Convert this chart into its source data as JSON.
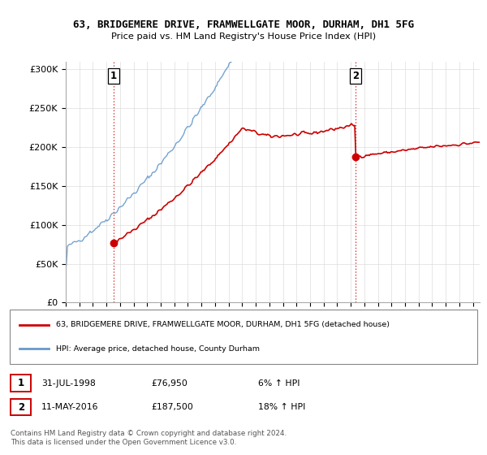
{
  "title": "63, BRIDGEMERE DRIVE, FRAMWELLGATE MOOR, DURHAM, DH1 5FG",
  "subtitle": "Price paid vs. HM Land Registry's House Price Index (HPI)",
  "background_color": "#ffffff",
  "plot_bg_color": "#ffffff",
  "grid_color": "#dddddd",
  "sale1_date": "31-JUL-1998",
  "sale1_price": 76950,
  "sale1_t": 1998.54,
  "sale1_label": "6% ↑ HPI",
  "sale2_date": "11-MAY-2016",
  "sale2_price": 187500,
  "sale2_t": 2016.37,
  "sale2_label": "18% ↑ HPI",
  "legend_line1": "63, BRIDGEMERE DRIVE, FRAMWELLGATE MOOR, DURHAM, DH1 5FG (detached house)",
  "legend_line2": "HPI: Average price, detached house, County Durham",
  "footer": "Contains HM Land Registry data © Crown copyright and database right 2024.\nThis data is licensed under the Open Government Licence v3.0.",
  "red_color": "#cc0000",
  "blue_color": "#6699cc",
  "ylim_max": 310000,
  "ylim_min": 0
}
